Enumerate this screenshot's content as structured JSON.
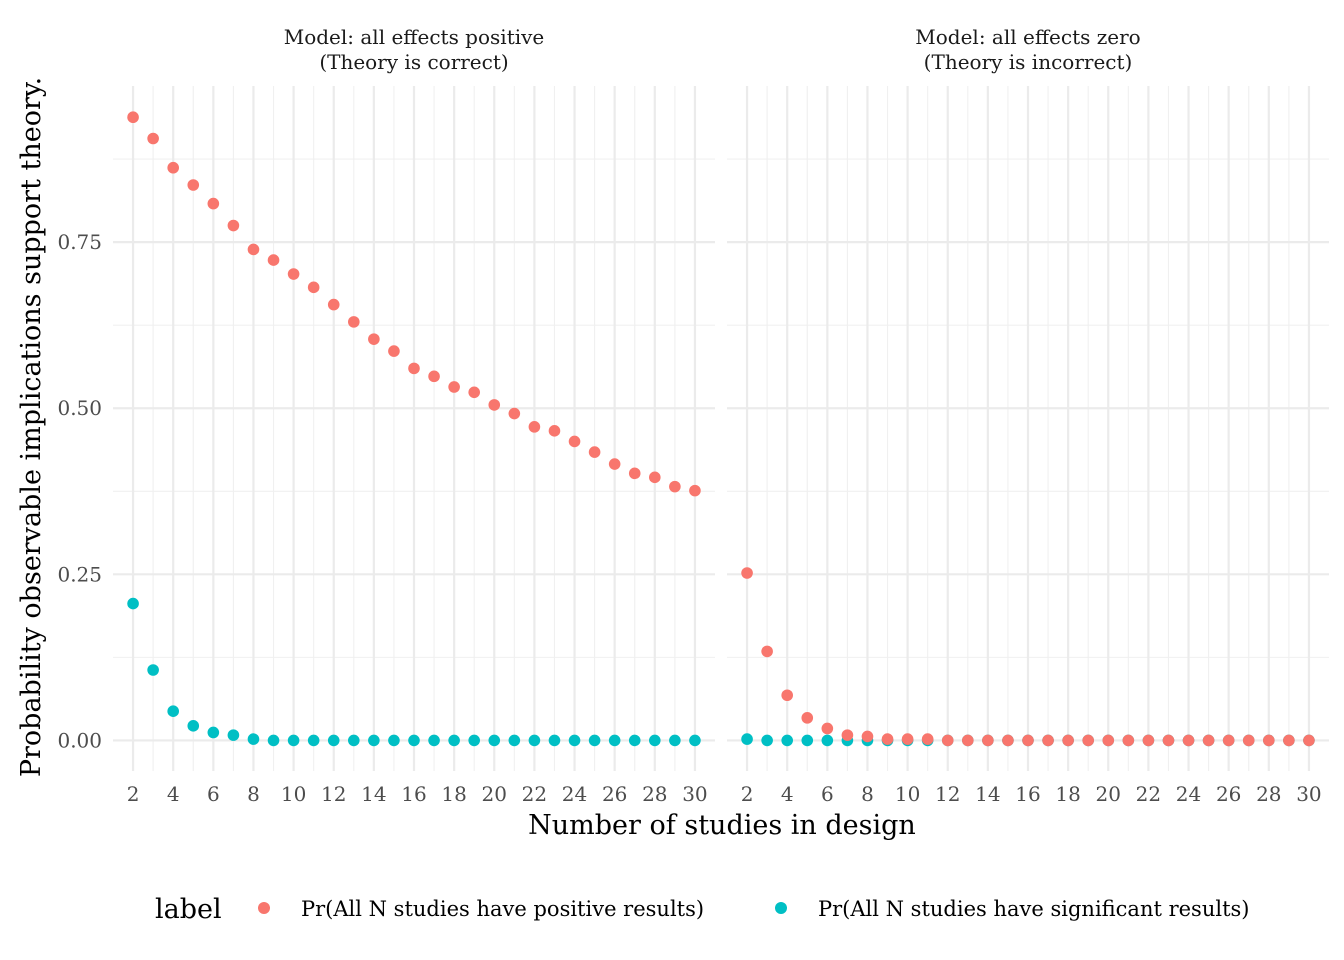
{
  "chart_data": {
    "type": "scatter",
    "xlabel": "Number of studies in design",
    "ylabel": "Probability observable implications support theory.",
    "x": [
      2,
      3,
      4,
      5,
      6,
      7,
      8,
      9,
      10,
      11,
      12,
      13,
      14,
      15,
      16,
      17,
      18,
      19,
      20,
      21,
      22,
      23,
      24,
      25,
      26,
      27,
      28,
      29,
      30
    ],
    "x_ticks": [
      2,
      4,
      6,
      8,
      10,
      12,
      14,
      16,
      18,
      20,
      22,
      24,
      26,
      28,
      30
    ],
    "x_tick_labels": [
      "2",
      "4",
      "6",
      "8",
      "10",
      "12",
      "14",
      "16",
      "18",
      "20",
      "22",
      "24",
      "26",
      "28",
      "30"
    ],
    "xlim": [
      1.0,
      31.0
    ],
    "y_ticks": [
      0,
      0.25,
      0.5,
      0.75
    ],
    "y_tick_labels": [
      "0.00",
      "0.25",
      "0.50",
      "0.75"
    ],
    "ylim": [
      -0.046,
      0.985
    ],
    "grid": true,
    "legend": {
      "title": "label",
      "position": "bottom",
      "entries": [
        {
          "label": "Pr(All N studies have positive results)",
          "color": "#F8766D"
        },
        {
          "label": "Pr(All N studies have significant results)",
          "color": "#00BFC4"
        }
      ]
    },
    "panels": [
      {
        "title_line1": "Model: all effects positive",
        "title_line2": "(Theory is correct)",
        "series": [
          {
            "name": "Pr(All N studies have positive results)",
            "color": "#F8766D",
            "values": [
              0.938,
              0.906,
              0.862,
              0.836,
              0.808,
              0.775,
              0.739,
              0.723,
              0.702,
              0.682,
              0.656,
              0.63,
              0.604,
              0.586,
              0.56,
              0.548,
              0.532,
              0.524,
              0.505,
              0.492,
              0.472,
              0.466,
              0.45,
              0.434,
              0.416,
              0.402,
              0.396,
              0.382,
              0.376
            ]
          },
          {
            "name": "Pr(All N studies have significant results)",
            "color": "#00BFC4",
            "values": [
              0.206,
              0.106,
              0.044,
              0.022,
              0.012,
              0.008,
              0.002,
              0.0,
              0.0,
              0.0,
              0.0,
              0.0,
              0.0,
              0.0,
              0.0,
              0.0,
              0.0,
              0.0,
              0.0,
              0.0,
              0.0,
              0.0,
              0.0,
              0.0,
              0.0,
              0.0,
              0.0,
              0.0,
              0.0
            ]
          }
        ]
      },
      {
        "title_line1": "Model: all effects zero",
        "title_line2": "(Theory is incorrect)",
        "series": [
          {
            "name": "Pr(All N studies have positive results)",
            "color": "#F8766D",
            "values": [
              0.252,
              0.134,
              0.068,
              0.034,
              0.018,
              0.008,
              0.006,
              0.002,
              0.002,
              0.002,
              0.0,
              0.0,
              0.0,
              0.0,
              0.0,
              0.0,
              0.0,
              0.0,
              0.0,
              0.0,
              0.0,
              0.0,
              0.0,
              0.0,
              0.0,
              0.0,
              0.0,
              0.0,
              0.0
            ]
          },
          {
            "name": "Pr(All N studies have significant results)",
            "color": "#00BFC4",
            "values": [
              0.002,
              0.0,
              0.0,
              0.0,
              0.0,
              0.0,
              0.0,
              0.0,
              0.0,
              0.0,
              0.0,
              0.0,
              0.0,
              0.0,
              0.0,
              0.0,
              0.0,
              0.0,
              0.0,
              0.0,
              0.0,
              0.0,
              0.0,
              0.0,
              0.0,
              0.0,
              0.0,
              0.0,
              0.0
            ]
          }
        ]
      }
    ]
  }
}
